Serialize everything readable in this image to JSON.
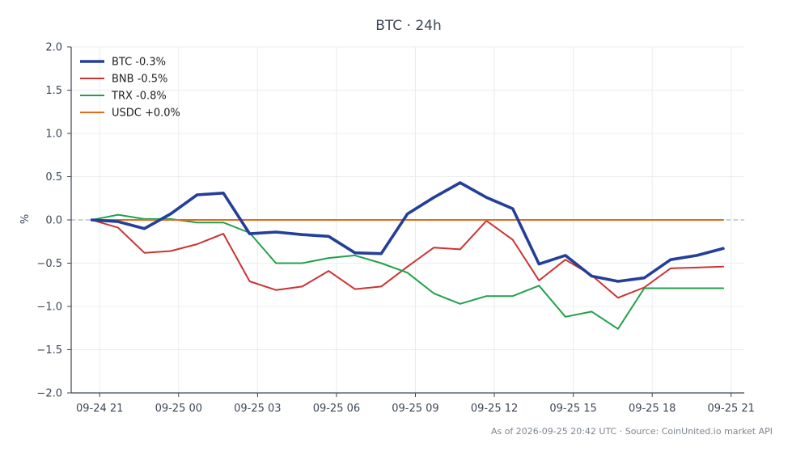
{
  "chart_data": {
    "type": "line",
    "title": "BTC · 24h",
    "xlabel": "",
    "ylabel": "%",
    "ylim": [
      -2.0,
      2.0
    ],
    "xlim": [
      "2026-09-24 19:55",
      "2026-09-25 21:30"
    ],
    "yticks": [
      "2.0",
      "1.5",
      "1.0",
      "0.5",
      "0.0",
      "−0.5",
      "−1.0",
      "−1.5",
      "−2.0"
    ],
    "ytick_values": [
      2.0,
      1.5,
      1.0,
      0.5,
      0.0,
      -0.5,
      -1.0,
      -1.5,
      -2.0
    ],
    "xticks": [
      "09-24 21",
      "09-25 00",
      "09-25 03",
      "09-25 06",
      "09-25 09",
      "09-25 12",
      "09-25 15",
      "09-25 18",
      "09-25 21"
    ],
    "xtick_values": [
      "2026-09-24 21:00",
      "2026-09-25 00:00",
      "2026-09-25 03:00",
      "2026-09-25 06:00",
      "2026-09-25 09:00",
      "2026-09-25 12:00",
      "2026-09-25 15:00",
      "2026-09-25 18:00",
      "2026-09-25 21:00"
    ],
    "x": [
      "2026-09-24 20:42",
      "2026-09-24 21:42",
      "2026-09-24 22:42",
      "2026-09-24 23:42",
      "2026-09-25 00:42",
      "2026-09-25 01:42",
      "2026-09-25 02:42",
      "2026-09-25 03:42",
      "2026-09-25 04:42",
      "2026-09-25 05:42",
      "2026-09-25 06:42",
      "2026-09-25 07:42",
      "2026-09-25 08:42",
      "2026-09-25 09:42",
      "2026-09-25 10:42",
      "2026-09-25 11:42",
      "2026-09-25 12:42",
      "2026-09-25 13:42",
      "2026-09-25 14:42",
      "2026-09-25 15:42",
      "2026-09-25 16:42",
      "2026-09-25 17:42",
      "2026-09-25 18:42",
      "2026-09-25 19:42",
      "2026-09-25 20:42"
    ],
    "series": [
      {
        "name": "BTC -0.3%",
        "color": "#233f99",
        "values": [
          0.0,
          -0.02,
          -0.1,
          0.07,
          0.29,
          0.31,
          -0.16,
          -0.14,
          -0.17,
          -0.19,
          -0.38,
          -0.39,
          0.07,
          0.26,
          0.43,
          0.26,
          0.13,
          -0.51,
          -0.41,
          -0.65,
          -0.71,
          -0.67,
          -0.46,
          -0.41,
          -0.33
        ]
      },
      {
        "name": "BNB -0.5%",
        "color": "#cc3333",
        "values": [
          0.0,
          -0.09,
          -0.38,
          -0.36,
          -0.28,
          -0.16,
          -0.71,
          -0.81,
          -0.77,
          -0.59,
          -0.8,
          -0.77,
          -0.54,
          -0.32,
          -0.34,
          -0.01,
          -0.23,
          -0.7,
          -0.46,
          -0.64,
          -0.9,
          -0.78,
          -0.56,
          -0.55,
          -0.54
        ]
      },
      {
        "name": "TRX -0.8%",
        "color": "#22a04b",
        "values": [
          0.0,
          0.06,
          0.01,
          0.01,
          -0.03,
          -0.03,
          -0.15,
          -0.5,
          -0.5,
          -0.44,
          -0.41,
          -0.5,
          -0.61,
          -0.85,
          -0.97,
          -0.88,
          -0.88,
          -0.76,
          -1.12,
          -1.06,
          -1.26,
          -0.79,
          -0.79,
          -0.79,
          -0.79
        ]
      },
      {
        "name": "USDC +0.0%",
        "color": "#e06c1c",
        "values": [
          0.0,
          0.0,
          0.0,
          0.0,
          0.0,
          0.0,
          0.0,
          0.0,
          0.0,
          0.0,
          0.0,
          0.0,
          0.0,
          0.0,
          0.0,
          0.0,
          0.0,
          0.0,
          0.0,
          0.0,
          0.0,
          0.0,
          0.0,
          0.0,
          0.0
        ]
      }
    ],
    "grid": true,
    "zero_line": true,
    "legend_position": "top-left"
  },
  "footer": "As of 2026-09-25 20:42 UTC · Source: CoinUnited.io market API"
}
